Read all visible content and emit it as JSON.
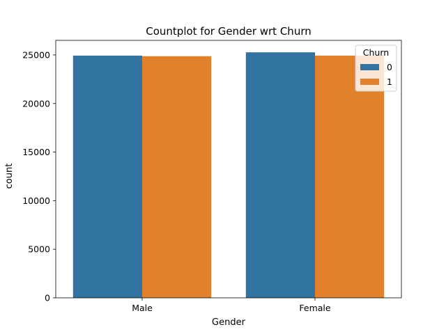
{
  "chart_data": {
    "type": "bar",
    "title": "Countplot for Gender wrt Churn",
    "xlabel": "Gender",
    "ylabel": "count",
    "categories": [
      "Male",
      "Female"
    ],
    "series": [
      {
        "name": "0",
        "values": [
          24930,
          25270
        ],
        "color": "#3274a1"
      },
      {
        "name": "1",
        "values": [
          24870,
          24930
        ],
        "color": "#e1812c"
      }
    ],
    "ylim": [
      0,
      26500
    ],
    "yticks": [
      0,
      5000,
      10000,
      15000,
      20000,
      25000
    ],
    "grid": false,
    "legend": {
      "title": "Churn",
      "placement": "top-right"
    }
  }
}
